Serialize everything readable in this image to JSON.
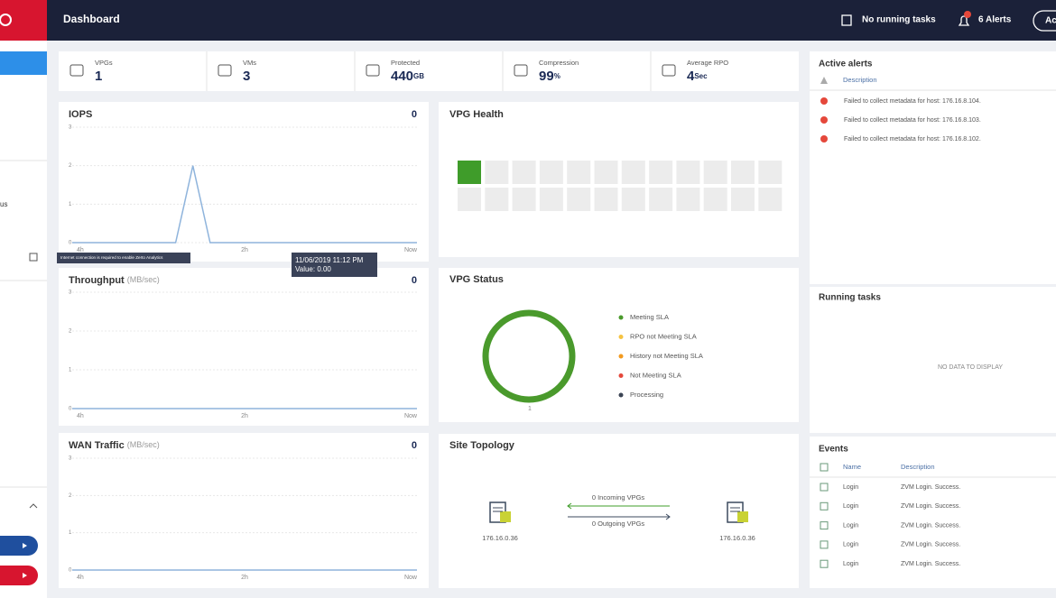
{
  "header": {
    "title": "Dashboard",
    "tasks": "No running tasks",
    "alerts": "6 Alerts",
    "button": "Ac"
  },
  "sidebar": {
    "item": "us"
  },
  "summary": [
    {
      "label": "VPGs",
      "value": 1
    },
    {
      "label": "VMs",
      "value": 3
    },
    {
      "label": "Protected",
      "value": 440,
      "unit": "GB"
    },
    {
      "label": "Compression",
      "value": 99,
      "unit": "%"
    },
    {
      "label": "Average RPO",
      "value": 4,
      "unit": "Sec"
    }
  ],
  "charts": [
    {
      "type": "line",
      "title": "IOPS",
      "current": 0,
      "ylim": [
        0,
        3
      ],
      "yticks": [
        0,
        1,
        2,
        3
      ],
      "xlabels": [
        "4h",
        "2h",
        "Now"
      ],
      "color": "#8fb4dc",
      "values": [
        0,
        0,
        0,
        0,
        0,
        0,
        0,
        2,
        0,
        0,
        0,
        0,
        0,
        0,
        0,
        0,
        0,
        0,
        0,
        0,
        0
      ]
    },
    {
      "type": "line",
      "title": "Throughput",
      "unit": "(MB/sec)",
      "current": 0,
      "ylim": [
        0,
        3
      ],
      "yticks": [
        0,
        1,
        2,
        3
      ],
      "xlabels": [
        "4h",
        "2h",
        "Now"
      ],
      "color": "#8fb4dc",
      "values": [
        0,
        0,
        0,
        0,
        0,
        0,
        0,
        0,
        0,
        0,
        0,
        0,
        0,
        0,
        0,
        0,
        0,
        0,
        0,
        0,
        0
      ]
    },
    {
      "type": "line",
      "title": "WAN Traffic",
      "unit": "(MB/sec)",
      "current": 0,
      "ylim": [
        0,
        3
      ],
      "yticks": [
        0,
        1,
        2,
        3
      ],
      "xlabels": [
        "4h",
        "2h",
        "Now"
      ],
      "color": "#8fb4dc",
      "values": [
        0,
        0,
        0,
        0,
        0,
        0,
        0,
        0,
        0,
        0,
        0,
        0,
        0,
        0,
        0,
        0,
        0,
        0,
        0,
        0,
        0
      ]
    }
  ],
  "iops_tooltips": {
    "notice": "Internet connection is required to enable Zerto Analytics",
    "time": "11/06/2019 11:12 PM",
    "value": "Value: 0.00"
  },
  "vpg_health": {
    "title": "VPG Health"
  },
  "vpg_status": {
    "title": "VPG Status",
    "total": 1,
    "ring_color": "#4a9a2c",
    "legend": [
      {
        "name": "Meeting SLA",
        "color": "#4a9a2c"
      },
      {
        "name": "RPO not Meeting SLA",
        "color": "#f5c342"
      },
      {
        "name": "History not Meeting SLA",
        "color": "#f29a1f"
      },
      {
        "name": "Not Meeting SLA",
        "color": "#e5483b"
      },
      {
        "name": "Processing",
        "color": "#3b4454"
      }
    ]
  },
  "site_topology": {
    "title": "Site Topology",
    "local": "176.16.0.36",
    "remote": "176.16.0.36",
    "incoming": "0 Incoming VPGs",
    "outgoing": "0 Outgoing VPGs"
  },
  "active_alerts": {
    "title": "Active alerts",
    "column": "Description",
    "rows": [
      "Failed to collect metadata for host: 176.16.8.104.",
      "Failed to collect metadata for host: 176.16.8.103.",
      "Failed to collect metadata for host: 176.16.8.102."
    ]
  },
  "running_tasks": {
    "title": "Running tasks",
    "empty": "NO DATA TO DISPLAY"
  },
  "events": {
    "title": "Events",
    "columns": [
      "Name",
      "Description"
    ],
    "rows": [
      [
        "Login",
        "ZVM Login. Success."
      ],
      [
        "Login",
        "ZVM Login. Success."
      ],
      [
        "Login",
        "ZVM Login. Success."
      ],
      [
        "Login",
        "ZVM Login. Success."
      ],
      [
        "Login",
        "ZVM Login. Success."
      ]
    ]
  }
}
